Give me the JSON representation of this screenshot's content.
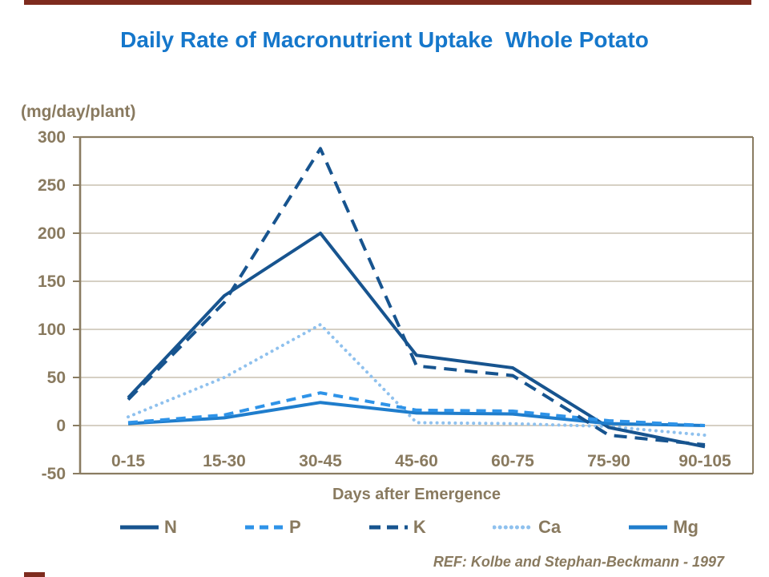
{
  "slide": {
    "title": "Daily Rate of Macronutrient Uptake  Whole Potato",
    "ref_note": "REF: Kolbe and Stephan-Beckmann - 1997"
  },
  "colors": {
    "accent_bar": "#7E2B1E",
    "title_blue": "#1577CB",
    "text_brown": "#897A5F",
    "axis_brown": "#8A7C62",
    "gridline": "#BDB3A0",
    "navy": "#17548F",
    "medium_blue": "#1F7DCC",
    "bright_blue": "#2E93E8",
    "light_blue": "#8FC1EE"
  },
  "chart_data": {
    "type": "line",
    "title": "Daily Rate of Macronutrient Uptake  Whole Potato",
    "xlabel": "Days after Emergence",
    "ylabel": "(mg/day/plant)",
    "categories": [
      "0-15",
      "15-30",
      "30-45",
      "45-60",
      "60-75",
      "75-90",
      "90-105"
    ],
    "series": [
      {
        "name": "N",
        "style": "solid",
        "color": "#17548F",
        "values": [
          29,
          135,
          200,
          73,
          60,
          -2,
          -22
        ]
      },
      {
        "name": "P",
        "style": "dashed",
        "color": "#2E93E8",
        "values": [
          3,
          11,
          34,
          16,
          15,
          5,
          0
        ]
      },
      {
        "name": "K",
        "style": "dashed-long",
        "color": "#17548F",
        "values": [
          27,
          128,
          288,
          62,
          52,
          -10,
          -20
        ]
      },
      {
        "name": "Ca",
        "style": "dotted",
        "color": "#8FC1EE",
        "values": [
          9,
          50,
          105,
          3,
          2,
          -1,
          -10
        ]
      },
      {
        "name": "Mg",
        "style": "solid",
        "color": "#1F7DCC",
        "values": [
          2,
          8,
          24,
          13,
          12,
          2,
          0
        ]
      }
    ],
    "ylim": [
      -50,
      300
    ],
    "ytick_step": 50,
    "grid": "horizontal",
    "legend_position": "bottom"
  }
}
